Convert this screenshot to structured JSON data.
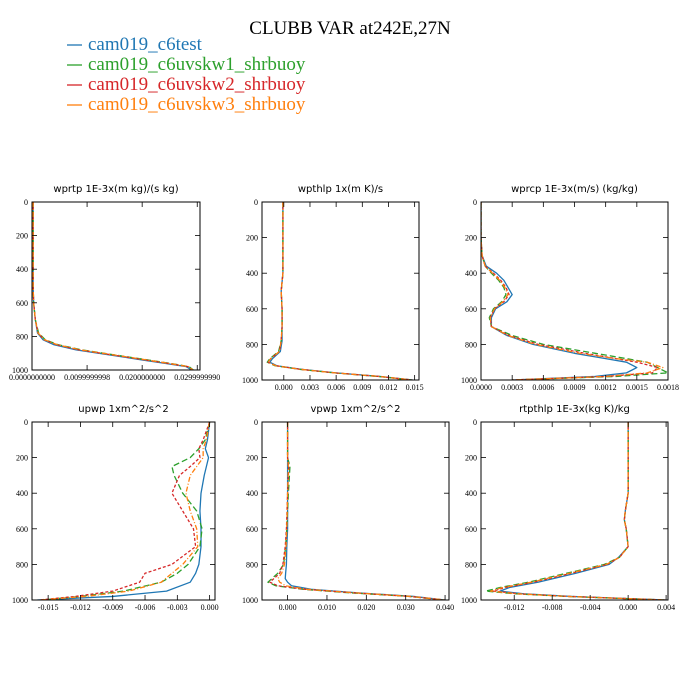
{
  "title": "CLUBB VAR at242E,27N",
  "legend": [
    {
      "name": "cam019_c6test",
      "color": "#1f77b4",
      "dash": "none"
    },
    {
      "name": "cam019_c6uvskw1_shrbuoy",
      "color": "#2ca02c",
      "dash": "6 3"
    },
    {
      "name": "cam019_c6uvskw2_shrbuoy",
      "color": "#d62728",
      "dash": "3 2"
    },
    {
      "name": "cam019_c6uvskw3_shrbuoy",
      "color": "#ff7f0e",
      "dash": "5 2 1 2"
    }
  ],
  "chart_data": [
    {
      "type": "line",
      "title": "wprtp  1E-3x(m kg)/(s kg)",
      "xlim": [
        0.0,
        0.0305
      ],
      "ylim": [
        1000,
        0
      ],
      "xticks": [
        0.0,
        0.01,
        0.02,
        0.03
      ],
      "xtick_labels": [
        "0.0000000000",
        "0.0099999998",
        "0.0200000000",
        "0.0299999990"
      ],
      "yticks": [
        0,
        200,
        400,
        600,
        800,
        1000
      ],
      "y": [
        0,
        100,
        200,
        300,
        400,
        500,
        600,
        700,
        780,
        820,
        850,
        880,
        910,
        940,
        960,
        980,
        1000
      ],
      "series": [
        {
          "values": [
            0.0002,
            0.0002,
            0.0002,
            0.0002,
            0.0002,
            0.0002,
            0.0003,
            0.0006,
            0.001,
            0.002,
            0.004,
            0.008,
            0.014,
            0.02,
            0.024,
            0.028,
            0.029
          ]
        },
        {
          "values": [
            0.0002,
            0.0002,
            0.0002,
            0.0002,
            0.0002,
            0.0002,
            0.0003,
            0.0006,
            0.0012,
            0.0024,
            0.0048,
            0.009,
            0.015,
            0.021,
            0.025,
            0.0285,
            0.0293
          ]
        },
        {
          "values": [
            0.0002,
            0.0002,
            0.0002,
            0.0002,
            0.0002,
            0.0002,
            0.0003,
            0.0006,
            0.0011,
            0.0022,
            0.0045,
            0.0085,
            0.0145,
            0.0205,
            0.0245,
            0.0283,
            0.0292
          ]
        },
        {
          "values": [
            0.0002,
            0.0002,
            0.0002,
            0.0002,
            0.0002,
            0.0002,
            0.0003,
            0.0006,
            0.0011,
            0.0023,
            0.0046,
            0.0088,
            0.0148,
            0.0208,
            0.0248,
            0.0284,
            0.0292
          ]
        }
      ]
    },
    {
      "type": "line",
      "title": "wpthlp  1x(m K)/s",
      "xlim": [
        -0.0025,
        0.0155
      ],
      "ylim": [
        1000,
        0
      ],
      "xticks": [
        0.0,
        0.003,
        0.006,
        0.009,
        0.012,
        0.015
      ],
      "xtick_labels": [
        "0.000",
        "0.003",
        "0.006",
        "0.009",
        "0.012",
        "0.015"
      ],
      "yticks": [
        0,
        200,
        400,
        600,
        800,
        1000
      ],
      "y": [
        0,
        100,
        200,
        300,
        400,
        500,
        600,
        700,
        780,
        840,
        880,
        900,
        920,
        940,
        960,
        980,
        1000
      ],
      "series": [
        {
          "values": [
            -0.0001,
            -0.0001,
            -0.0001,
            -0.0001,
            -0.0001,
            -0.0003,
            -0.0002,
            -0.0002,
            -0.0002,
            -0.0004,
            -0.0013,
            -0.0016,
            -0.0008,
            0.002,
            0.006,
            0.011,
            0.0148
          ]
        },
        {
          "values": [
            -0.0001,
            -0.0001,
            -0.0001,
            -0.0001,
            -0.0001,
            -0.0003,
            -0.0002,
            -0.0002,
            -0.0003,
            -0.0006,
            -0.0016,
            -0.0019,
            -0.001,
            0.0018,
            0.0058,
            0.0108,
            0.0146
          ]
        },
        {
          "values": [
            -0.0001,
            -0.0001,
            -0.0001,
            -0.0001,
            -0.0001,
            -0.0003,
            -0.0002,
            -0.0002,
            -0.0003,
            -0.0005,
            -0.0015,
            -0.0018,
            -0.0009,
            0.0019,
            0.0059,
            0.0109,
            0.0147
          ]
        },
        {
          "values": [
            -0.0001,
            -0.0001,
            -0.0001,
            -0.0001,
            -0.0001,
            -0.0003,
            -0.0002,
            -0.0002,
            -0.0003,
            -0.0005,
            -0.0015,
            -0.0018,
            -0.0009,
            0.0019,
            0.0059,
            0.011,
            0.0147
          ]
        }
      ]
    },
    {
      "type": "line",
      "title": "wprcp  1E-3x(m/s) (kg/kg)",
      "xlim": [
        0.0,
        0.0018
      ],
      "ylim": [
        1000,
        0
      ],
      "xticks": [
        0.0,
        0.0003,
        0.0006,
        0.0009,
        0.0012,
        0.0015,
        0.0018
      ],
      "xtick_labels": [
        "0.0000",
        "0.0003",
        "0.0006",
        "0.0009",
        "0.0012",
        "0.0015",
        "0.0018"
      ],
      "yticks": [
        0,
        200,
        400,
        600,
        800,
        1000
      ],
      "y": [
        0,
        200,
        300,
        360,
        400,
        440,
        480,
        520,
        560,
        600,
        650,
        700,
        750,
        800,
        850,
        880,
        900,
        930,
        960,
        980,
        1000
      ],
      "series": [
        {
          "values": [
            0,
            0,
            1e-05,
            5e-05,
            0.00015,
            0.00022,
            0.00026,
            0.0003,
            0.00025,
            0.00014,
            0.0001,
            0.0001,
            0.00025,
            0.0005,
            0.0009,
            0.0012,
            0.0014,
            0.0015,
            0.0014,
            0.0011,
            0.0003
          ]
        },
        {
          "values": [
            0,
            0,
            1e-05,
            4e-05,
            0.0001,
            0.00017,
            0.00022,
            0.00024,
            0.0002,
            0.00012,
            8e-05,
            0.0001,
            0.0003,
            0.0006,
            0.0011,
            0.0014,
            0.0016,
            0.0017,
            0.0018,
            0.0013,
            0.0003
          ]
        },
        {
          "values": [
            0,
            0,
            1e-05,
            4e-05,
            0.00012,
            0.00019,
            0.00024,
            0.00027,
            0.00022,
            0.00013,
            9e-05,
            0.0001,
            0.00027,
            0.00055,
            0.001,
            0.0013,
            0.0015,
            0.0017,
            0.00165,
            0.0012,
            0.0003
          ]
        },
        {
          "values": [
            0,
            0,
            1e-05,
            4e-05,
            0.00011,
            0.00018,
            0.00023,
            0.00026,
            0.00021,
            0.00013,
            9e-05,
            0.0001,
            0.00026,
            0.00052,
            0.00095,
            0.0013,
            0.0016,
            0.00175,
            0.0016,
            0.0012,
            0.0003
          ]
        }
      ]
    },
    {
      "type": "line",
      "title": "upwp  1xm^2/s^2",
      "xlim": [
        -0.0165,
        0.0005
      ],
      "ylim": [
        1000,
        0
      ],
      "xticks": [
        -0.015,
        -0.012,
        -0.009,
        -0.006,
        -0.003,
        0.0
      ],
      "xtick_labels": [
        "-0.015",
        "-0.012",
        "-0.009",
        "-0.006",
        "-0.003",
        "0.000"
      ],
      "yticks": [
        0,
        200,
        400,
        600,
        800,
        1000
      ],
      "y": [
        0,
        100,
        150,
        200,
        250,
        300,
        400,
        500,
        600,
        700,
        800,
        850,
        900,
        950,
        980,
        1000
      ],
      "series": [
        {
          "values": [
            0.0,
            -0.0002,
            -0.0004,
            -0.0001,
            -0.0003,
            -0.0005,
            -0.0008,
            -0.0009,
            -0.0008,
            -0.0008,
            -0.001,
            -0.0013,
            -0.0018,
            -0.004,
            -0.009,
            -0.016
          ]
        },
        {
          "values": [
            0.0,
            -0.0004,
            -0.001,
            -0.0018,
            -0.0035,
            -0.0033,
            -0.0025,
            -0.0012,
            -0.0007,
            -0.0009,
            -0.002,
            -0.003,
            -0.0045,
            -0.008,
            -0.012,
            -0.0155
          ]
        },
        {
          "values": [
            0.0,
            -0.0006,
            -0.001,
            -0.0009,
            -0.0018,
            -0.0028,
            -0.0035,
            -0.0025,
            -0.0015,
            -0.0013,
            -0.0035,
            -0.006,
            -0.0065,
            -0.009,
            -0.0125,
            -0.0158
          ]
        },
        {
          "values": [
            0.0,
            -0.0003,
            -0.0006,
            -0.0006,
            -0.0012,
            -0.0018,
            -0.0022,
            -0.0018,
            -0.0012,
            -0.0011,
            -0.0025,
            -0.0035,
            -0.0045,
            -0.0075,
            -0.0115,
            -0.0157
          ]
        }
      ]
    },
    {
      "type": "line",
      "title": "vpwp  1xm^2/s^2",
      "xlim": [
        -0.0065,
        0.041
      ],
      "ylim": [
        1000,
        0
      ],
      "xticks": [
        0.0,
        0.01,
        0.02,
        0.03,
        0.04
      ],
      "xtick_labels": [
        "0.000",
        "0.010",
        "0.020",
        "0.030",
        "0.040"
      ],
      "yticks": [
        0,
        200,
        400,
        600,
        800,
        1000
      ],
      "y": [
        0,
        200,
        250,
        400,
        600,
        700,
        800,
        850,
        880,
        900,
        920,
        940,
        960,
        980,
        1000
      ],
      "series": [
        {
          "values": [
            0.0,
            0.0,
            0.0,
            0.0,
            0.0,
            -0.0002,
            -0.0003,
            -0.0005,
            -0.0006,
            0.0,
            0.001,
            0.006,
            0.018,
            0.032,
            0.04
          ]
        },
        {
          "values": [
            0.0,
            0.0,
            0.0006,
            0.0002,
            -0.0002,
            -0.0005,
            -0.001,
            -0.0025,
            -0.004,
            -0.005,
            -0.003,
            0.004,
            0.016,
            0.031,
            0.0395
          ]
        },
        {
          "values": [
            0.0,
            0.0,
            0.0003,
            0.0,
            -0.0003,
            -0.0006,
            -0.0012,
            -0.002,
            -0.0035,
            -0.0045,
            -0.0025,
            0.0045,
            0.017,
            0.031,
            0.0398
          ]
        },
        {
          "values": [
            0.0,
            0.0,
            0.0002,
            0.0,
            -0.0002,
            -0.0004,
            -0.0008,
            -0.0015,
            -0.0025,
            -0.002,
            -0.0005,
            0.005,
            0.0175,
            0.0315,
            0.04
          ]
        }
      ]
    },
    {
      "type": "line",
      "title": "rtpthlp  1E-3x(kg K)/kg",
      "xlim": [
        -0.0155,
        0.0042
      ],
      "ylim": [
        1000,
        0
      ],
      "xticks": [
        -0.012,
        -0.008,
        -0.004,
        0.0,
        0.004
      ],
      "xtick_labels": [
        "-0.012",
        "-0.008",
        "-0.004",
        "0.000",
        "0.004"
      ],
      "yticks": [
        0,
        200,
        400,
        600,
        800,
        1000
      ],
      "y": [
        0,
        200,
        400,
        500,
        550,
        600,
        700,
        760,
        800,
        850,
        900,
        930,
        950,
        965,
        980,
        1000
      ],
      "series": [
        {
          "values": [
            0.0,
            0.0,
            0.0,
            -0.0003,
            -0.0004,
            -0.0002,
            0.0,
            -0.001,
            -0.002,
            -0.0055,
            -0.0095,
            -0.0125,
            -0.0135,
            -0.011,
            -0.006,
            0.004
          ]
        },
        {
          "values": [
            0.0,
            0.0,
            0.0,
            -0.0003,
            -0.0004,
            -0.0002,
            0.0,
            -0.0009,
            -0.0025,
            -0.0065,
            -0.0105,
            -0.0135,
            -0.015,
            -0.012,
            -0.0065,
            0.0038
          ]
        },
        {
          "values": [
            0.0,
            0.0,
            0.0,
            -0.0003,
            -0.0004,
            -0.0002,
            0.0,
            -0.0009,
            -0.0022,
            -0.006,
            -0.01,
            -0.013,
            -0.0142,
            -0.0115,
            -0.0062,
            0.0039
          ]
        },
        {
          "values": [
            0.0,
            0.0,
            0.0,
            -0.0003,
            -0.0004,
            -0.0002,
            0.0,
            -0.0009,
            -0.0023,
            -0.0062,
            -0.0102,
            -0.0132,
            -0.0145,
            -0.0117,
            -0.0063,
            0.0039
          ]
        }
      ]
    }
  ]
}
